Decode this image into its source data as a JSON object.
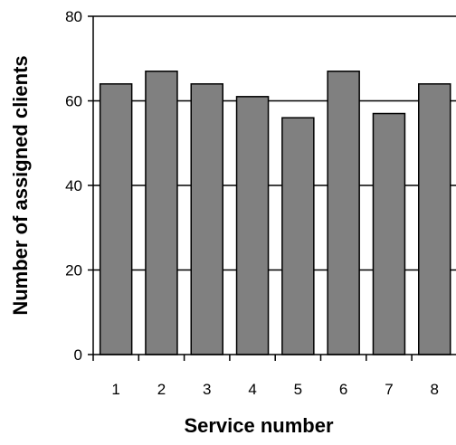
{
  "chart_data": {
    "type": "bar",
    "xlabel": "Service number",
    "ylabel": "Number of assigned clients",
    "categories": [
      "1",
      "2",
      "3",
      "4",
      "5",
      "6",
      "7",
      "8"
    ],
    "values": [
      64,
      67,
      64,
      61,
      56,
      67,
      57,
      64
    ],
    "ylim": [
      0,
      80
    ],
    "yticks": [
      "0",
      "20",
      "40",
      "60",
      "80"
    ],
    "grid": true,
    "legend": "none",
    "colors": {
      "bar_fill": "#808080",
      "bar_stroke": "#000000",
      "grid": "#000000",
      "background": "#ffffff"
    }
  }
}
